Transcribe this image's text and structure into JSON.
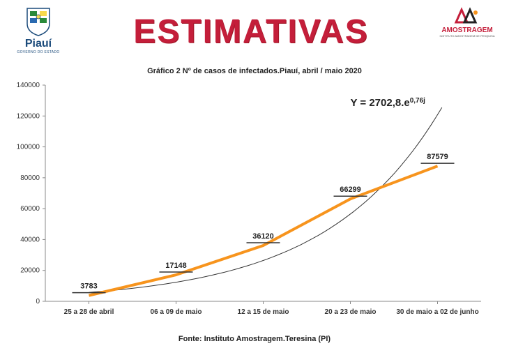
{
  "header": {
    "title": "ESTIMATIVAS",
    "left_logo": {
      "name": "Piauí",
      "sub": "GOVERNO DO ESTADO"
    },
    "right_logo": {
      "name": "AMOSTRAGEM",
      "sub": "INSTITUTO AMOSTRAGEM DE PESQUISA"
    }
  },
  "chart": {
    "subtitle": "Gráfico 2 Nº de casos de infectados.Piauí, abril  / maio 2020",
    "type": "line",
    "categories": [
      "25 a 28 de abril",
      "06 a 09 de maio",
      "12 a 15 de maio",
      "20 a 23 de maio",
      "30 de maio a 02 de junho"
    ],
    "values": [
      3783,
      17148,
      36120,
      66299,
      87579
    ],
    "value_labels": [
      "3783",
      "17148",
      "36120",
      "66299",
      "87579"
    ],
    "line_color": "#f7941d",
    "trend_color": "#333333",
    "axis_color": "#888888",
    "background_color": "#ffffff",
    "ylim": [
      0,
      140000
    ],
    "ytick_step": 20000,
    "yticks": [
      0,
      20000,
      40000,
      60000,
      80000,
      100000,
      120000,
      140000
    ],
    "equation": "Y = 2702,8.e",
    "equation_exp": "0,76j",
    "line_width": 4,
    "trend_formula_a": 2702.8,
    "trend_formula_b": 0.76,
    "trend_max_display": 125000,
    "label_fontsize": 11
  },
  "footer": "Fonte: Instituto Amostragem.Teresina (PI)"
}
